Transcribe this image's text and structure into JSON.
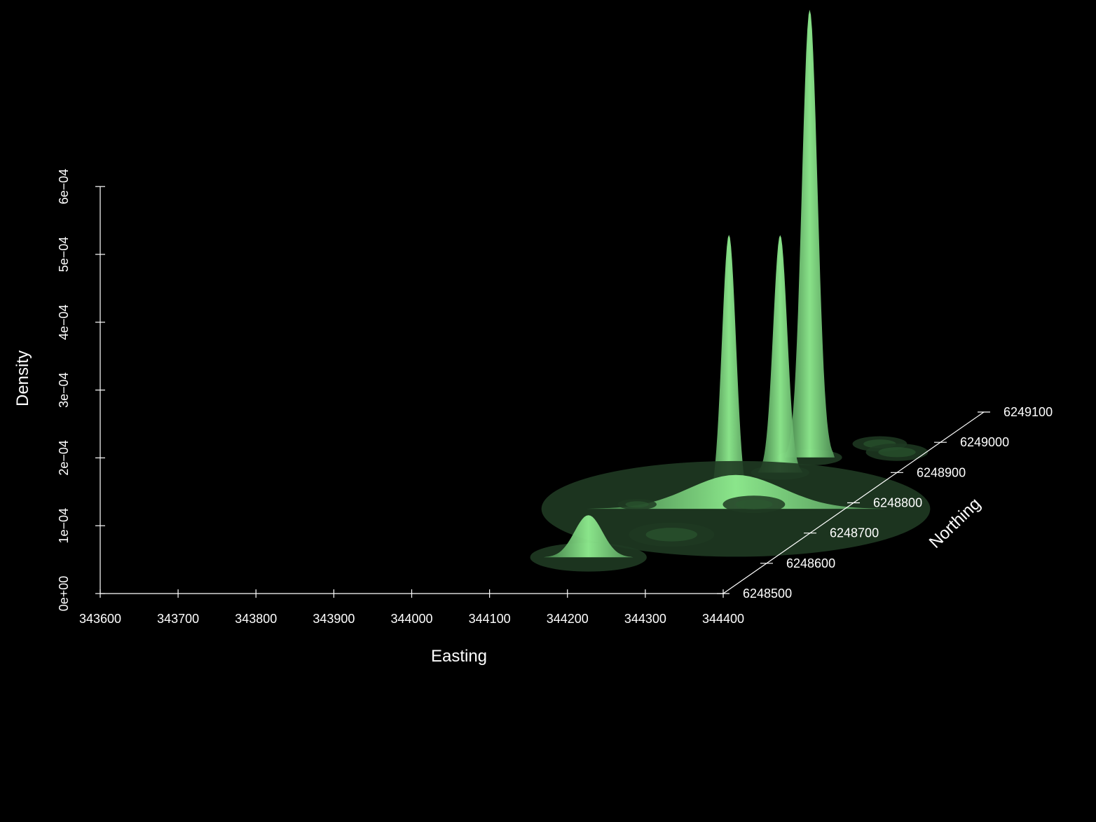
{
  "chart_data": {
    "type": "surface-3d",
    "xlabel": "Easting",
    "ylabel": "Northing",
    "zlabel": "Density",
    "x_ticks": [
      "343600",
      "343700",
      "343800",
      "343900",
      "344000",
      "344100",
      "344200",
      "344300",
      "344400"
    ],
    "y_ticks": [
      "6248500",
      "6248600",
      "6248700",
      "6248800",
      "6248900",
      "6249000",
      "6249100"
    ],
    "z_ticks": [
      "0e+00",
      "1e−04",
      "2e−04",
      "3e−04",
      "4e−04",
      "5e−04",
      "6e−04"
    ],
    "xlim": [
      343600,
      344400
    ],
    "ylim": [
      6248500,
      6249100
    ],
    "zlim": [
      0,
      0.0006
    ],
    "grid": false,
    "background": "#000000",
    "axis_color": "#ffffff",
    "surface_color": "#90ee90",
    "peaks": [
      {
        "easting": 344160,
        "northing": 6248620,
        "density": 6.2e-05
      },
      {
        "easting": 344240,
        "northing": 6248800,
        "density": 0.000395
      },
      {
        "easting": 344250,
        "northing": 6248900,
        "density": 0.00035
      },
      {
        "easting": 344260,
        "northing": 6248950,
        "density": 0.00066
      },
      {
        "easting": 344260,
        "northing": 6248780,
        "density": 5e-05
      },
      {
        "easting": 344250,
        "northing": 6248650,
        "density": 2e-05
      },
      {
        "easting": 344300,
        "northing": 6248750,
        "density": 2e-05
      },
      {
        "easting": 344400,
        "northing": 6248900,
        "density": 3e-05
      },
      {
        "easting": 344150,
        "northing": 6248750,
        "density": 2e-05
      },
      {
        "easting": 344350,
        "northing": 6248950,
        "density": 2e-05
      }
    ]
  }
}
